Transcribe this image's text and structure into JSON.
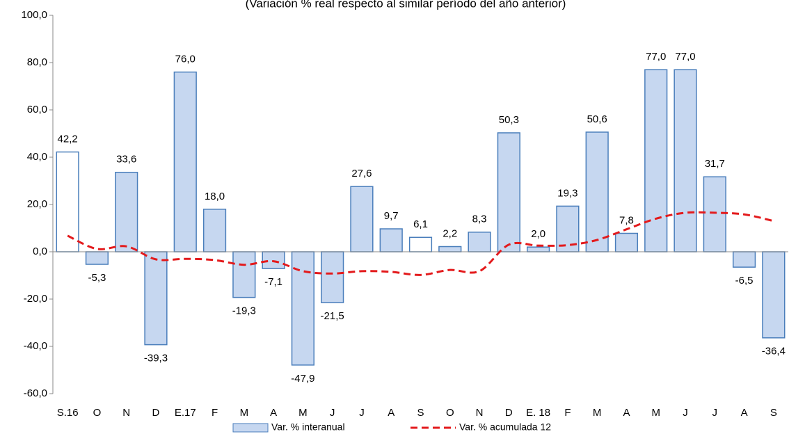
{
  "chart_data": {
    "type": "bar",
    "subtitle": "(Variación % real respecto al similar período del año anterior)",
    "categories": [
      "S.16",
      "O",
      "N",
      "D",
      "E.17",
      "F",
      "M",
      "A",
      "M",
      "J",
      "J",
      "A",
      "S",
      "O",
      "N",
      "D",
      "E. 18",
      "F",
      "M",
      "A",
      "M",
      "J",
      "J",
      "A",
      "S"
    ],
    "series": [
      {
        "name": "Var. % interanual",
        "type": "bar",
        "color": "#c6d7f0",
        "edge_color": "#4a7ebb",
        "colors": [
          "#ffffff",
          "#c6d7f0",
          "#c6d7f0",
          "#c6d7f0",
          "#c6d7f0",
          "#c6d7f0",
          "#c6d7f0",
          "#c6d7f0",
          "#c6d7f0",
          "#c6d7f0",
          "#c6d7f0",
          "#c6d7f0",
          "#ffffff",
          "#c6d7f0",
          "#c6d7f0",
          "#c6d7f0",
          "#c6d7f0",
          "#c6d7f0",
          "#c6d7f0",
          "#c6d7f0",
          "#c6d7f0",
          "#c6d7f0",
          "#c6d7f0",
          "#c6d7f0",
          "#c6d7f0"
        ],
        "values": [
          42.2,
          -5.3,
          33.6,
          -39.3,
          76.0,
          18.0,
          -19.3,
          -7.1,
          -47.9,
          -21.5,
          27.6,
          9.7,
          6.1,
          2.2,
          8.3,
          50.3,
          2.0,
          19.3,
          50.6,
          7.8,
          77.0,
          77.0,
          31.7,
          -6.5,
          -36.4
        ],
        "value_labels": [
          "42,2",
          "-5,3",
          "33,6",
          "-39,3",
          "76,0",
          "18,0",
          "-19,3",
          "-7,1",
          "-47,9",
          "-21,5",
          "27,6",
          "9,7",
          "6,1",
          "2,2",
          "8,3",
          "50,3",
          "2,0",
          "19,3",
          "50,6",
          "7,8",
          "77,0",
          "77,0",
          "31,7",
          "-6,5",
          "-36,4"
        ]
      },
      {
        "name": "Var. % acumulada 12",
        "type": "line",
        "color": "#e31a1c",
        "dashed": true,
        "values": [
          6.8,
          1.2,
          2.3,
          -3.2,
          -3.0,
          -3.5,
          -5.5,
          -4.0,
          -8.2,
          -9.2,
          -8.2,
          -8.5,
          -9.8,
          -7.7,
          -8.2,
          3.0,
          2.6,
          2.8,
          5.0,
          9.5,
          14.0,
          16.5,
          16.5,
          15.8,
          13.0
        ]
      }
    ],
    "ylim": [
      -60,
      100
    ],
    "yticks": [
      {
        "value": -60,
        "label": "-60,0"
      },
      {
        "value": -40,
        "label": "-40,0"
      },
      {
        "value": -20,
        "label": "-20,0"
      },
      {
        "value": 0,
        "label": "0,0"
      },
      {
        "value": 20,
        "label": "20,0"
      },
      {
        "value": 40,
        "label": "40,0"
      },
      {
        "value": 60,
        "label": "60,0"
      },
      {
        "value": 80,
        "label": "80,0"
      },
      {
        "value": 100,
        "label": "100,0"
      }
    ],
    "grid": false,
    "legend": "bottom"
  }
}
